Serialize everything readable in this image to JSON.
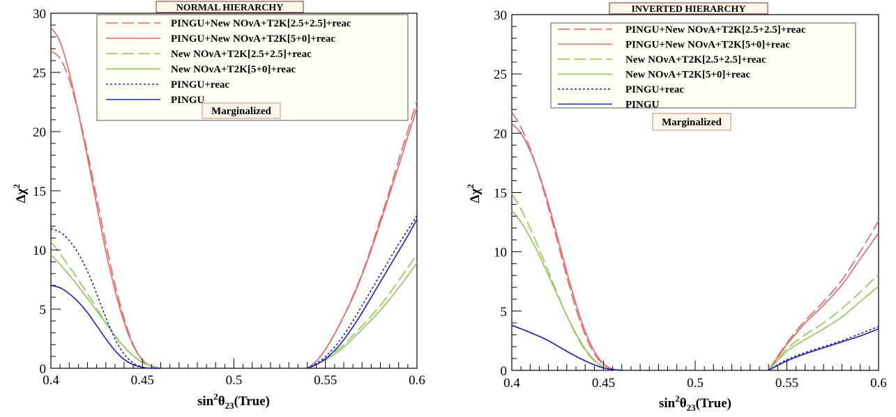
{
  "chart_data": [
    {
      "type": "line",
      "title": "NORMAL HIERARCHY",
      "annotation": "Marginalized",
      "xlabel": "sin²θ₂₃(True)",
      "ylabel": "Δχ²",
      "xlim": [
        0.4,
        0.6
      ],
      "ylim": [
        0,
        30
      ],
      "xticks": [
        "0.4",
        "0.45",
        "0.5",
        "0.55",
        "0.6"
      ],
      "yticks": [
        "0",
        "5",
        "10",
        "15",
        "20",
        "25",
        "30"
      ],
      "legend_position": "top-right",
      "grid": false,
      "series": [
        {
          "name": "PINGU+New NOνA+T2K[2.5+2.5]+reac",
          "color": "#f06060",
          "dash": "dashed",
          "x": [
            0.4,
            0.405,
            0.41,
            0.415,
            0.42,
            0.425,
            0.43,
            0.435,
            0.44,
            0.445,
            0.45,
            0.455,
            0.46,
            0.54,
            0.545,
            0.55,
            0.555,
            0.56,
            0.565,
            0.57,
            0.575,
            0.58,
            0.585,
            0.59,
            0.595,
            0.6
          ],
          "y": [
            26.8,
            26.2,
            24.4,
            21.6,
            18.2,
            14.4,
            10.6,
            7.1,
            4.2,
            2.0,
            0.7,
            0.15,
            0,
            0,
            0.6,
            1.6,
            2.9,
            4.4,
            6.1,
            8.0,
            10.2,
            12.6,
            15.0,
            17.6,
            20.1,
            22.6
          ]
        },
        {
          "name": "PINGU+New NOνA+T2K[5+0]+reac",
          "color": "#f06060",
          "dash": "solid",
          "x": [
            0.4,
            0.405,
            0.41,
            0.415,
            0.42,
            0.425,
            0.43,
            0.435,
            0.44,
            0.445,
            0.45,
            0.455,
            0.46,
            0.54,
            0.545,
            0.55,
            0.555,
            0.56,
            0.565,
            0.57,
            0.575,
            0.58,
            0.585,
            0.59,
            0.595,
            0.6
          ],
          "y": [
            28.8,
            27.6,
            25.0,
            21.6,
            17.8,
            13.8,
            9.9,
            6.6,
            3.9,
            1.9,
            0.7,
            0.15,
            0,
            0,
            0.6,
            1.6,
            2.9,
            4.4,
            6.0,
            7.9,
            10.0,
            12.3,
            14.7,
            17.1,
            19.6,
            22.0
          ]
        },
        {
          "name": "New NOνA+T2K[2.5+2.5]+reac",
          "color": "#8cc850",
          "dash": "dashed",
          "x": [
            0.4,
            0.41,
            0.42,
            0.43,
            0.44,
            0.45,
            0.46,
            0.54,
            0.55,
            0.56,
            0.57,
            0.58,
            0.59,
            0.6
          ],
          "y": [
            10.7,
            8.6,
            6.3,
            3.9,
            1.8,
            0.5,
            0,
            0,
            0.8,
            2.0,
            3.6,
            5.3,
            7.4,
            9.6
          ]
        },
        {
          "name": "New NOνA+T2K[5+0]+reac",
          "color": "#8cc850",
          "dash": "solid",
          "x": [
            0.4,
            0.41,
            0.42,
            0.43,
            0.44,
            0.45,
            0.46,
            0.54,
            0.55,
            0.56,
            0.57,
            0.58,
            0.59,
            0.6
          ],
          "y": [
            9.6,
            7.9,
            5.9,
            3.8,
            1.8,
            0.5,
            0,
            0,
            0.7,
            1.8,
            3.3,
            4.9,
            6.8,
            8.9
          ]
        },
        {
          "name": "PINGU+reac",
          "color": "#1a1ad6",
          "dash": "dotted",
          "x": [
            0.4,
            0.405,
            0.41,
            0.415,
            0.42,
            0.425,
            0.43,
            0.435,
            0.44,
            0.445,
            0.45,
            0.455,
            0.46,
            0.54,
            0.545,
            0.55,
            0.555,
            0.56,
            0.565,
            0.57,
            0.575,
            0.58,
            0.585,
            0.59,
            0.595,
            0.6
          ],
          "y": [
            11.8,
            11.5,
            10.8,
            9.7,
            8.2,
            6.3,
            4.3,
            2.5,
            1.2,
            0.45,
            0.1,
            0,
            0,
            0,
            0.4,
            1.0,
            1.8,
            2.8,
            4.0,
            5.3,
            6.6,
            7.9,
            9.2,
            10.5,
            11.7,
            12.9
          ]
        },
        {
          "name": "PINGU",
          "color": "#1a1ad6",
          "dash": "solid",
          "x": [
            0.4,
            0.405,
            0.41,
            0.415,
            0.42,
            0.425,
            0.43,
            0.435,
            0.44,
            0.445,
            0.45,
            0.455,
            0.46,
            0.54,
            0.545,
            0.55,
            0.555,
            0.56,
            0.565,
            0.57,
            0.575,
            0.58,
            0.585,
            0.59,
            0.595,
            0.6
          ],
          "y": [
            7.0,
            6.8,
            6.3,
            5.6,
            4.7,
            3.6,
            2.5,
            1.5,
            0.75,
            0.3,
            0.08,
            0,
            0,
            0,
            0.3,
            0.8,
            1.5,
            2.4,
            3.5,
            4.7,
            6.0,
            7.3,
            8.6,
            9.9,
            11.2,
            12.6
          ]
        },
        {
          "name": "",
          "color": "#1a1ad6",
          "dash": "solid",
          "x": [
            0.48,
            0.52
          ],
          "y": [
            0,
            0
          ]
        }
      ]
    },
    {
      "type": "line",
      "title": "INVERTED HIERARCHY",
      "annotation": "Marginalized",
      "xlabel": "sin²θ₂₃(True)",
      "ylabel": "Δχ²",
      "xlim": [
        0.4,
        0.6
      ],
      "ylim": [
        0,
        30
      ],
      "xticks": [
        "0.4",
        "0.45",
        "0.5",
        "0.55",
        "0.6"
      ],
      "yticks": [
        "0",
        "5",
        "10",
        "15",
        "20",
        "25",
        "30"
      ],
      "legend_position": "top-right",
      "grid": false,
      "series": [
        {
          "name": "PINGU+New NOνA+T2K[2.5+2.5]+reac",
          "color": "#f06060",
          "dash": "dashed",
          "x": [
            0.4,
            0.405,
            0.41,
            0.415,
            0.42,
            0.425,
            0.43,
            0.435,
            0.44,
            0.445,
            0.45,
            0.455,
            0.46,
            0.54,
            0.545,
            0.55,
            0.555,
            0.56,
            0.57,
            0.58,
            0.59,
            0.6
          ],
          "y": [
            21.8,
            20.5,
            18.7,
            16.4,
            13.7,
            10.8,
            7.9,
            5.2,
            3.0,
            1.4,
            0.5,
            0.1,
            0,
            0,
            1.2,
            2.3,
            3.3,
            4.2,
            5.8,
            7.6,
            10.0,
            12.6
          ]
        },
        {
          "name": "PINGU+New NOνA+T2K[5+0]+reac",
          "color": "#f06060",
          "dash": "solid",
          "x": [
            0.4,
            0.405,
            0.41,
            0.415,
            0.42,
            0.425,
            0.43,
            0.435,
            0.44,
            0.445,
            0.45,
            0.455,
            0.46,
            0.54,
            0.545,
            0.55,
            0.555,
            0.56,
            0.57,
            0.58,
            0.59,
            0.6
          ],
          "y": [
            20.8,
            20.0,
            18.5,
            16.5,
            14.0,
            11.2,
            8.3,
            5.6,
            3.3,
            1.6,
            0.55,
            0.1,
            0,
            0,
            1.1,
            2.2,
            3.1,
            4.0,
            5.5,
            7.2,
            9.4,
            11.6
          ]
        },
        {
          "name": "New NOνA+T2K[2.5+2.5]+reac",
          "color": "#8cc850",
          "dash": "dashed",
          "x": [
            0.4,
            0.405,
            0.41,
            0.415,
            0.42,
            0.425,
            0.43,
            0.435,
            0.44,
            0.445,
            0.45,
            0.455,
            0.46,
            0.54,
            0.55,
            0.56,
            0.57,
            0.58,
            0.59,
            0.6
          ],
          "y": [
            14.9,
            13.6,
            12.0,
            10.2,
            8.3,
            6.4,
            4.6,
            3.0,
            1.7,
            0.8,
            0.25,
            0.05,
            0,
            0,
            1.8,
            3.0,
            4.0,
            5.2,
            6.6,
            8.1
          ]
        },
        {
          "name": "New NOνA+T2K[5+0]+reac",
          "color": "#8cc850",
          "dash": "solid",
          "x": [
            0.4,
            0.405,
            0.41,
            0.415,
            0.42,
            0.425,
            0.43,
            0.435,
            0.44,
            0.445,
            0.45,
            0.455,
            0.46,
            0.54,
            0.55,
            0.56,
            0.57,
            0.58,
            0.59,
            0.6
          ],
          "y": [
            13.5,
            12.5,
            11.2,
            9.7,
            8.0,
            6.3,
            4.6,
            3.1,
            1.8,
            0.85,
            0.28,
            0.05,
            0,
            0,
            1.6,
            2.6,
            3.5,
            4.5,
            5.8,
            7.1
          ]
        },
        {
          "name": "PINGU+reac",
          "color": "#1a1ad6",
          "dash": "dotted",
          "x": [
            0.4,
            0.41,
            0.42,
            0.43,
            0.44,
            0.45,
            0.46,
            0.54,
            0.55,
            0.56,
            0.57,
            0.58,
            0.59,
            0.6
          ],
          "y": [
            3.8,
            3.2,
            2.5,
            1.6,
            0.8,
            0.2,
            0,
            0,
            0.9,
            1.5,
            2.0,
            2.5,
            3.1,
            3.7
          ]
        },
        {
          "name": "PINGU",
          "color": "#1a1ad6",
          "dash": "solid",
          "x": [
            0.4,
            0.41,
            0.42,
            0.43,
            0.44,
            0.45,
            0.46,
            0.54,
            0.55,
            0.56,
            0.57,
            0.58,
            0.59,
            0.6
          ],
          "y": [
            3.8,
            3.2,
            2.5,
            1.6,
            0.8,
            0.2,
            0,
            0,
            0.8,
            1.4,
            1.9,
            2.4,
            2.9,
            3.5
          ]
        },
        {
          "name": "",
          "color": "#1a1ad6",
          "dash": "solid",
          "x": [
            0.48,
            0.52
          ],
          "y": [
            0,
            0
          ]
        }
      ]
    }
  ]
}
